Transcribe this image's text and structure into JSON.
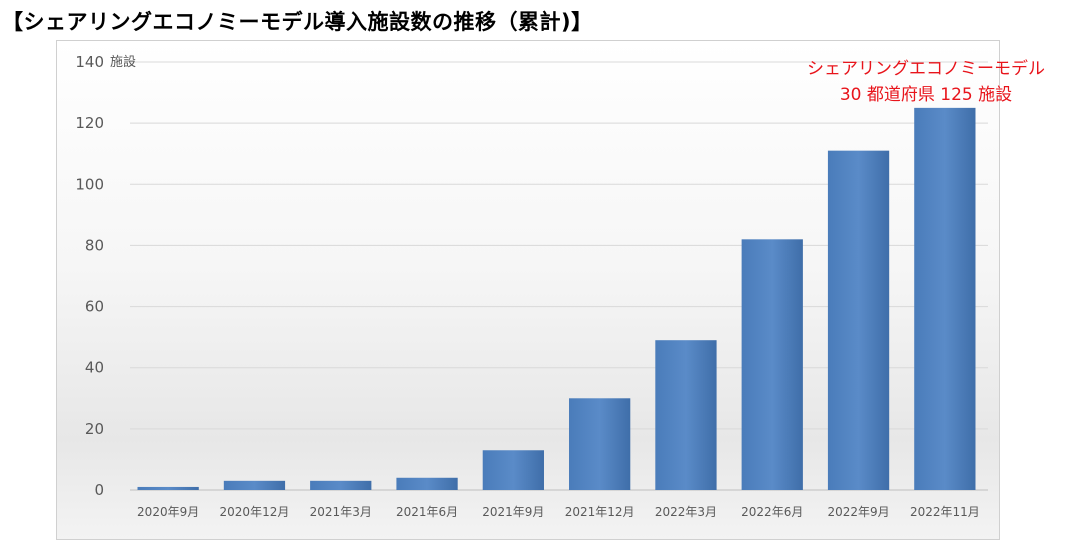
{
  "title": "【シェアリングエコノミーモデル導入施設数の推移（累計)】",
  "chart_data": {
    "type": "bar",
    "title": "【シェアリングエコノミーモデル導入施設数の推移（累計)】",
    "categories": [
      "2020年9月",
      "2020年12月",
      "2021年3月",
      "2021年6月",
      "2021年9月",
      "2021年12月",
      "2022年3月",
      "2022年6月",
      "2022年9月",
      "2022年11月"
    ],
    "series": [
      {
        "values": [
          1,
          3,
          3,
          4,
          13,
          30,
          49,
          82,
          111,
          125
        ]
      }
    ],
    "ylim": [
      0,
      140
    ],
    "yticks": [
      0,
      20,
      40,
      60,
      80,
      100,
      120,
      140
    ],
    "yunit": "施設",
    "grid": true,
    "bar_color": "#4f81bd",
    "annotation": {
      "line1": "シェアリングエコノミーモデル",
      "line2": "30 都道府県 125 施設",
      "color": "#e8141b"
    }
  }
}
